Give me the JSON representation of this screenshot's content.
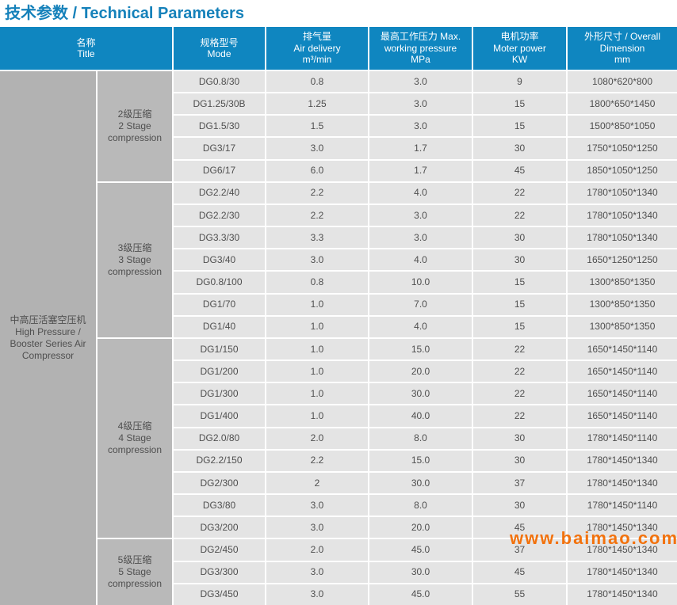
{
  "page_title": "技术参数 / Technical Parameters",
  "colors": {
    "title_text": "#1581ba",
    "header_bg": "#0f86c0",
    "header_text": "#ffffff",
    "series_cell_bg": "#b2b2b2",
    "stage_cell_bg": "#b9b9b9",
    "data_cell_bg": "#e4e4e4",
    "cell_text": "#4f4f4f",
    "watermark_text": "#f2720d"
  },
  "watermark": "www.baimao.com",
  "table": {
    "headers": [
      "名称\nTitle",
      "规格型号\nMode",
      "排气量\nAir delivery\nm³/min",
      "最高工作压力 Max.\nworking pressure\nMPa",
      "电机功率\nMoter power\nKW",
      "外形尺寸 / Overall\nDimension\nmm"
    ],
    "series_label": "中高压活塞空压机\nHigh Pressure /\nBooster Series Air\nCompressor",
    "sections": [
      {
        "stage_label": "2级压缩\n2 Stage\ncompression",
        "rows": [
          {
            "mode": "DG0.8/30",
            "air_delivery": "0.8",
            "max_pressure": "3.0",
            "motor_power": "9",
            "dimension": "1080*620*800"
          },
          {
            "mode": "DG1.25/30B",
            "air_delivery": "1.25",
            "max_pressure": "3.0",
            "motor_power": "15",
            "dimension": "1800*650*1450"
          },
          {
            "mode": "DG1.5/30",
            "air_delivery": "1.5",
            "max_pressure": "3.0",
            "motor_power": "15",
            "dimension": "1500*850*1050"
          },
          {
            "mode": "DG3/17",
            "air_delivery": "3.0",
            "max_pressure": "1.7",
            "motor_power": "30",
            "dimension": "1750*1050*1250"
          },
          {
            "mode": "DG6/17",
            "air_delivery": "6.0",
            "max_pressure": "1.7",
            "motor_power": "45",
            "dimension": "1850*1050*1250"
          }
        ]
      },
      {
        "stage_label": "3级压缩\n3 Stage\ncompression",
        "rows": [
          {
            "mode": "DG2.2/40",
            "air_delivery": "2.2",
            "max_pressure": "4.0",
            "motor_power": "22",
            "dimension": "1780*1050*1340"
          },
          {
            "mode": "DG2.2/30",
            "air_delivery": "2.2",
            "max_pressure": "3.0",
            "motor_power": "22",
            "dimension": "1780*1050*1340"
          },
          {
            "mode": "DG3.3/30",
            "air_delivery": "3.3",
            "max_pressure": "3.0",
            "motor_power": "30",
            "dimension": "1780*1050*1340"
          },
          {
            "mode": "DG3/40",
            "air_delivery": "3.0",
            "max_pressure": "4.0",
            "motor_power": "30",
            "dimension": "1650*1250*1250"
          },
          {
            "mode": "DG0.8/100",
            "air_delivery": "0.8",
            "max_pressure": "10.0",
            "motor_power": "15",
            "dimension": "1300*850*1350"
          },
          {
            "mode": "DG1/70",
            "air_delivery": "1.0",
            "max_pressure": "7.0",
            "motor_power": "15",
            "dimension": "1300*850*1350"
          },
          {
            "mode": "DG1/40",
            "air_delivery": "1.0",
            "max_pressure": "4.0",
            "motor_power": "15",
            "dimension": "1300*850*1350"
          }
        ]
      },
      {
        "stage_label": "4级压缩\n4 Stage\ncompression",
        "rows": [
          {
            "mode": "DG1/150",
            "air_delivery": "1.0",
            "max_pressure": "15.0",
            "motor_power": "22",
            "dimension": "1650*1450*1140"
          },
          {
            "mode": "DG1/200",
            "air_delivery": "1.0",
            "max_pressure": "20.0",
            "motor_power": "22",
            "dimension": "1650*1450*1140"
          },
          {
            "mode": "DG1/300",
            "air_delivery": "1.0",
            "max_pressure": "30.0",
            "motor_power": "22",
            "dimension": "1650*1450*1140"
          },
          {
            "mode": "DG1/400",
            "air_delivery": "1.0",
            "max_pressure": "40.0",
            "motor_power": "22",
            "dimension": "1650*1450*1140"
          },
          {
            "mode": "DG2.0/80",
            "air_delivery": "2.0",
            "max_pressure": "8.0",
            "motor_power": "30",
            "dimension": "1780*1450*1140"
          },
          {
            "mode": "DG2.2/150",
            "air_delivery": "2.2",
            "max_pressure": "15.0",
            "motor_power": "30",
            "dimension": "1780*1450*1340"
          },
          {
            "mode": "DG2/300",
            "air_delivery": "2",
            "max_pressure": "30.0",
            "motor_power": "37",
            "dimension": "1780*1450*1340"
          },
          {
            "mode": "DG3/80",
            "air_delivery": "3.0",
            "max_pressure": "8.0",
            "motor_power": "30",
            "dimension": "1780*1450*1140"
          },
          {
            "mode": "DG3/200",
            "air_delivery": "3.0",
            "max_pressure": "20.0",
            "motor_power": "45",
            "dimension": "1780*1450*1340"
          }
        ]
      },
      {
        "stage_label": "5级压缩\n5 Stage\ncompression",
        "rows": [
          {
            "mode": "DG2/450",
            "air_delivery": "2.0",
            "max_pressure": "45.0",
            "motor_power": "37",
            "dimension": "1780*1450*1340"
          },
          {
            "mode": "DG3/300",
            "air_delivery": "3.0",
            "max_pressure": "30.0",
            "motor_power": "45",
            "dimension": "1780*1450*1340"
          },
          {
            "mode": "DG3/450",
            "air_delivery": "3.0",
            "max_pressure": "45.0",
            "motor_power": "55",
            "dimension": "1780*1450*1340"
          }
        ]
      }
    ]
  }
}
